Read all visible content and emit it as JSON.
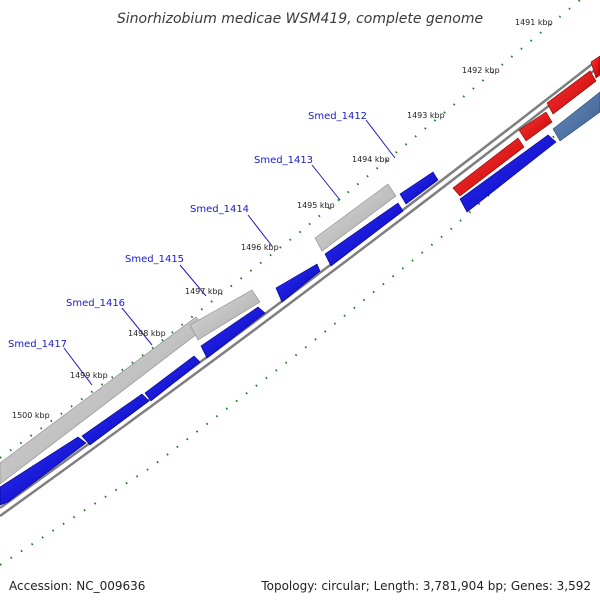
{
  "title": "Sinorhizobium medicae WSM419, complete genome",
  "footer": {
    "accession_prefix": "Accession: ",
    "accession": "NC_009636",
    "topology_prefix": "Topology: ",
    "topology": "circular",
    "length_prefix": "; Length: ",
    "length": "3,781,904 bp",
    "genes_prefix": "; Genes: ",
    "genes": "3,592"
  },
  "ticks": [
    "1491 kbp",
    "1492 kbp",
    "1493 kbp",
    "1494 kbp",
    "1495 kbp",
    "1496 kbp",
    "1497 kbp",
    "1498 kbp",
    "1499 kbp",
    "1500 kbp"
  ],
  "gene_labels": [
    "Smed_1412",
    "Smed_1413",
    "Smed_1414",
    "Smed_1415",
    "Smed_1416",
    "Smed_1417"
  ],
  "colors": {
    "backbone": "#7f7f7f",
    "forward_gene": "#0000dd",
    "forward_gene_light": "#4a6fa5",
    "reverse_gene": "#ee0000",
    "pseudo_gene": "#bdbdbd",
    "tick": "#1e7a1e",
    "label": "#1a1acc"
  }
}
